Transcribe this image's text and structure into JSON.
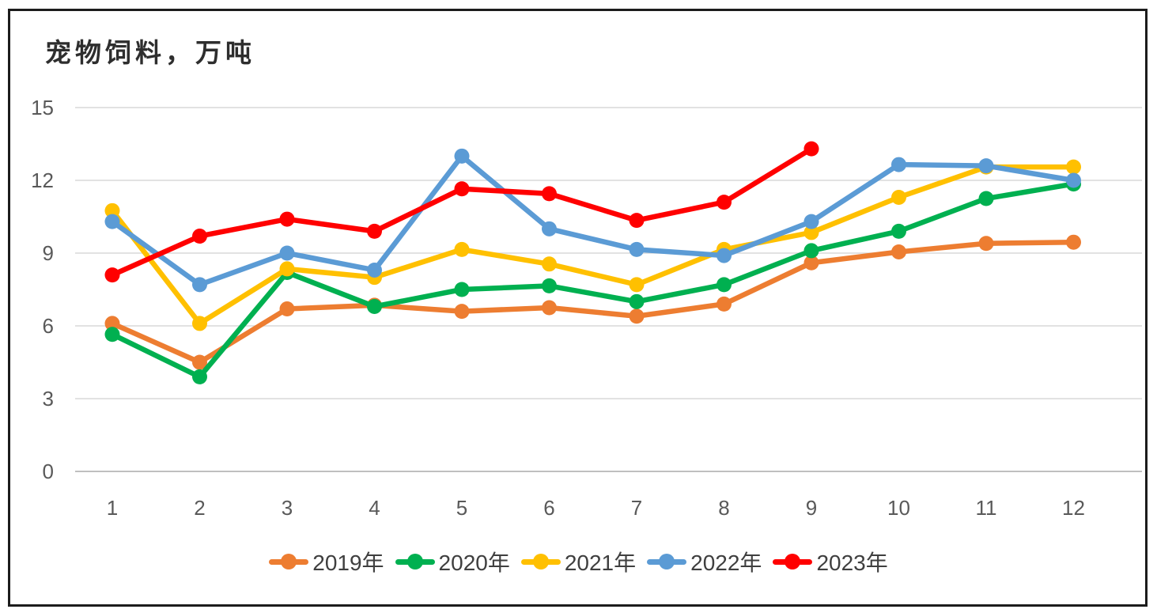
{
  "chart_data": {
    "type": "line",
    "title": "宠物饲料，万吨",
    "xlabel": "",
    "ylabel": "",
    "x": [
      1,
      2,
      3,
      4,
      5,
      6,
      7,
      8,
      9,
      10,
      11,
      12
    ],
    "ylim": [
      0,
      15
    ],
    "yticks": [
      0,
      3,
      6,
      9,
      12,
      15
    ],
    "grid": true,
    "legend_position": "bottom",
    "series": [
      {
        "name": "2019年",
        "color": "#ED7D31",
        "values": [
          6.1,
          4.5,
          6.7,
          6.85,
          6.6,
          6.75,
          6.4,
          6.9,
          8.6,
          9.05,
          9.4,
          9.45
        ]
      },
      {
        "name": "2020年",
        "color": "#00B050",
        "values": [
          5.65,
          3.9,
          8.2,
          6.8,
          7.5,
          7.65,
          7.0,
          7.7,
          9.1,
          9.9,
          11.25,
          11.85
        ]
      },
      {
        "name": "2021年",
        "color": "#FFC000",
        "values": [
          10.75,
          6.1,
          8.35,
          8.0,
          9.15,
          8.55,
          7.7,
          9.15,
          9.85,
          11.3,
          12.55,
          12.55
        ]
      },
      {
        "name": "2022年",
        "color": "#5B9BD5",
        "values": [
          10.3,
          7.7,
          9.0,
          8.3,
          13.0,
          10.0,
          9.15,
          8.9,
          10.3,
          12.65,
          12.6,
          12.0
        ]
      },
      {
        "name": "2023年",
        "color": "#FF0000",
        "values": [
          8.1,
          9.7,
          10.4,
          9.9,
          11.65,
          11.45,
          10.35,
          11.1,
          13.3
        ]
      }
    ],
    "style": {
      "background": "#FFFFFF",
      "border_color": "#1C1C1C",
      "grid_color": "#D9D9D9",
      "axis_line_color": "#BFBFBF",
      "tick_label_color": "#595959",
      "title_color": "#2E2E2E",
      "legend_label_color": "#3F3F3F"
    }
  }
}
